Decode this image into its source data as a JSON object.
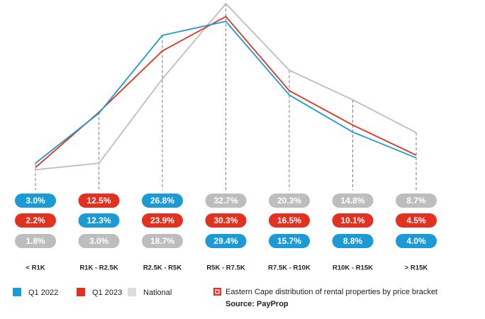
{
  "chart_data": {
    "type": "line",
    "categories": [
      "< R1K",
      "R1K - R2.5K",
      "R2.5K - R5K",
      "R5K - R7.5K",
      "R7.5K - R10K",
      "R10K - R15K",
      "> R15K"
    ],
    "series": [
      {
        "name": "Q1 2022",
        "color": "#1c9ad6",
        "values": [
          3.0,
          12.3,
          26.8,
          29.4,
          15.7,
          8.8,
          4.0
        ],
        "value_labels": [
          "3.0%",
          "12.3%",
          "26.8%",
          "29.4%",
          "15.7%",
          "8.8%",
          "4.0%"
        ]
      },
      {
        "name": "Q1 2023",
        "color": "#e3301f",
        "values": [
          2.2,
          12.5,
          23.9,
          30.3,
          16.5,
          10.1,
          4.5
        ],
        "value_labels": [
          "2.2%",
          "12.5%",
          "23.9%",
          "30.3%",
          "16.5%",
          "10.1%",
          "4.5%"
        ]
      },
      {
        "name": "National",
        "color": "#bdbdbd",
        "values": [
          1.8,
          3.0,
          18.7,
          32.7,
          20.3,
          14.8,
          8.7
        ],
        "value_labels": [
          "1.8%",
          "3.0%",
          "18.7%",
          "32.7%",
          "20.3%",
          "14.8%",
          "8.7%"
        ]
      }
    ],
    "caption": "Eastern Cape distribution of rental properties by price bracket",
    "source": "Source: PayProp"
  }
}
